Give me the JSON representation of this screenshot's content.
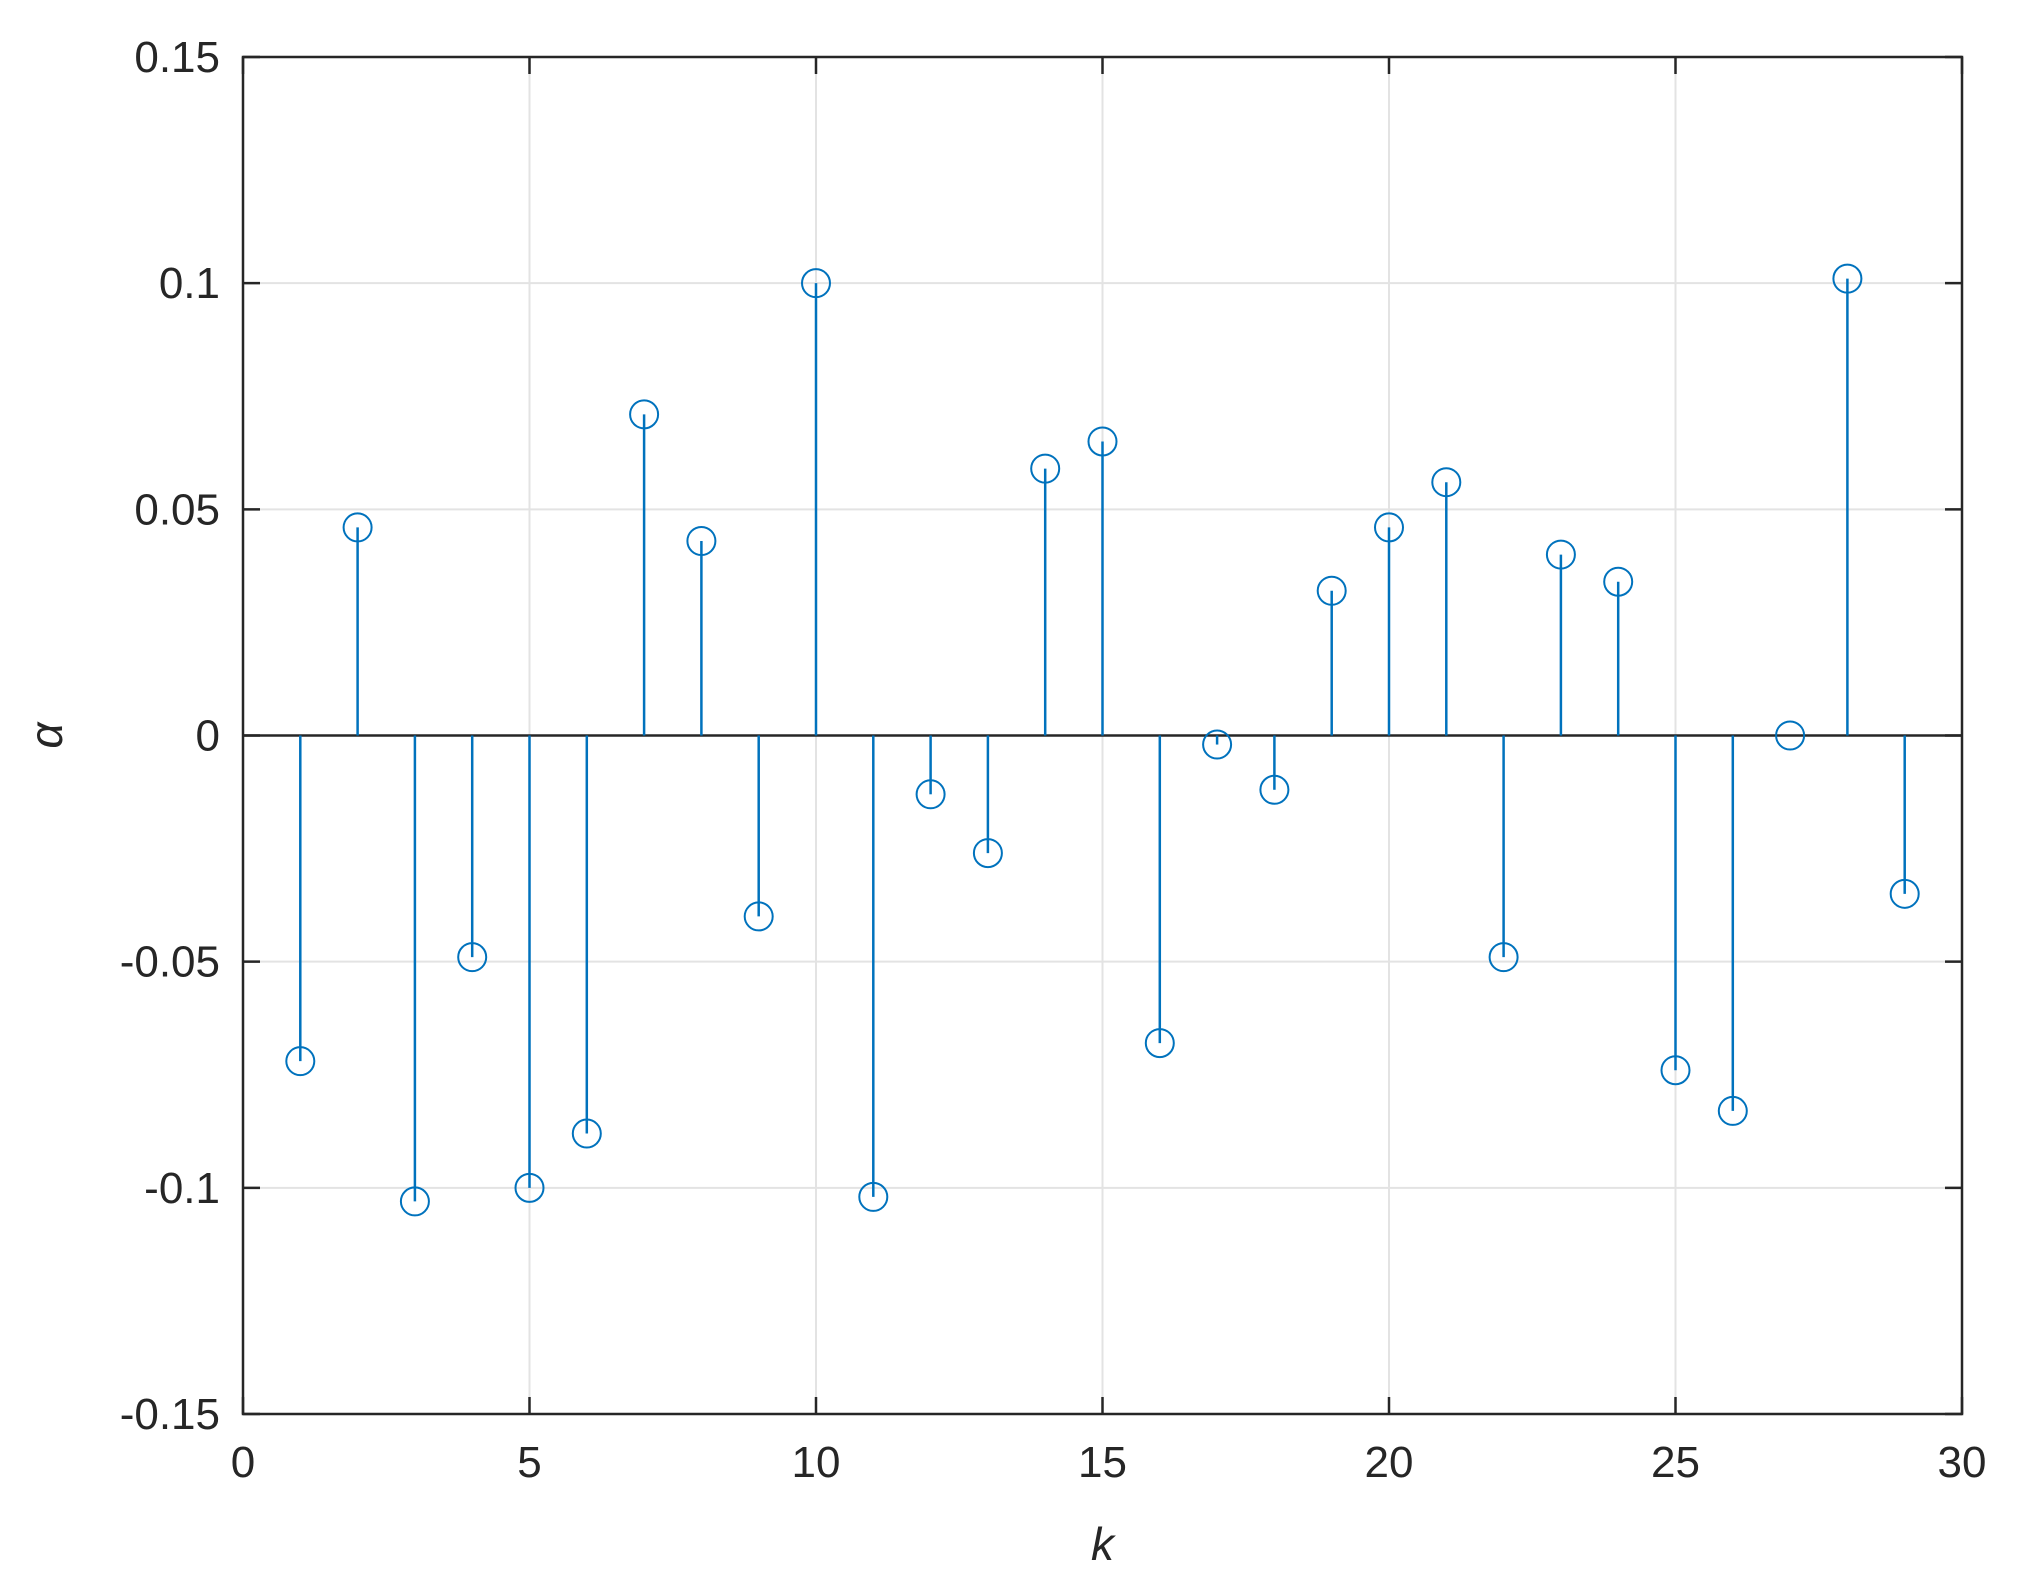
{
  "chart_data": {
    "type": "stem",
    "title": "",
    "xlabel": "k",
    "ylabel": "α",
    "xlim": [
      0,
      30
    ],
    "ylim": [
      -0.15,
      0.15
    ],
    "xticks": [
      0,
      5,
      10,
      15,
      20,
      25,
      30
    ],
    "xtick_labels": [
      "0",
      "5",
      "10",
      "15",
      "20",
      "25",
      "30"
    ],
    "yticks": [
      -0.15,
      -0.1,
      -0.05,
      0,
      0.05,
      0.1,
      0.15
    ],
    "ytick_labels": [
      "-0.15",
      "-0.1",
      "-0.05",
      "0",
      "0.05",
      "0.1",
      "0.15"
    ],
    "grid": true,
    "series_color": "#0072BD",
    "x": [
      1,
      2,
      3,
      4,
      5,
      6,
      7,
      8,
      9,
      10,
      11,
      12,
      13,
      14,
      15,
      16,
      17,
      18,
      19,
      20,
      21,
      22,
      23,
      24,
      25,
      26,
      27,
      28,
      29
    ],
    "y": [
      -0.072,
      0.046,
      -0.103,
      -0.049,
      -0.1,
      -0.088,
      0.071,
      0.043,
      -0.04,
      0.1,
      -0.102,
      -0.013,
      -0.026,
      0.059,
      0.065,
      -0.068,
      -0.002,
      -0.012,
      0.032,
      0.046,
      0.056,
      -0.049,
      0.04,
      0.034,
      -0.074,
      -0.083,
      0.0,
      0.101,
      -0.035
    ]
  }
}
